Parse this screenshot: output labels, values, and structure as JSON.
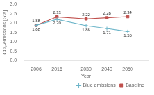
{
  "chart_data": {
    "type": "line",
    "x_label": "Year",
    "y_label": "CO₂-emissions [Gta]",
    "x": [
      2006,
      2016,
      2030,
      2040,
      2050
    ],
    "series": [
      {
        "name": "Blue emissions",
        "color": "#6ab4c8",
        "marker": "plus",
        "values": [
          1.88,
          2.2,
          1.86,
          1.71,
          1.55
        ],
        "value_labels": [
          "1.88",
          "2.20",
          "1.86",
          "1.71",
          "1.55"
        ]
      },
      {
        "name": "Baseline",
        "color": "#c0504d",
        "marker": "square",
        "values": [
          1.88,
          2.33,
          2.22,
          2.28,
          2.34
        ],
        "value_labels": [
          "1.88",
          "2.33",
          "2.22",
          "2.28",
          "2.34"
        ]
      }
    ],
    "xlim": [
      2000,
      2060
    ],
    "xticks": [
      2006,
      2016,
      2030,
      2040,
      2050
    ],
    "ylim": [
      0.0,
      3.0
    ],
    "yticks": [
      {
        "value": 0,
        "label": "0.0"
      },
      0.5,
      {
        "value": 1,
        "label": "1.0"
      },
      1.5,
      {
        "value": 2,
        "label": "2.0"
      },
      2.5,
      {
        "value": 3,
        "label": "3.0"
      }
    ],
    "data_labels": true,
    "grid": false,
    "legend": "lower right"
  }
}
